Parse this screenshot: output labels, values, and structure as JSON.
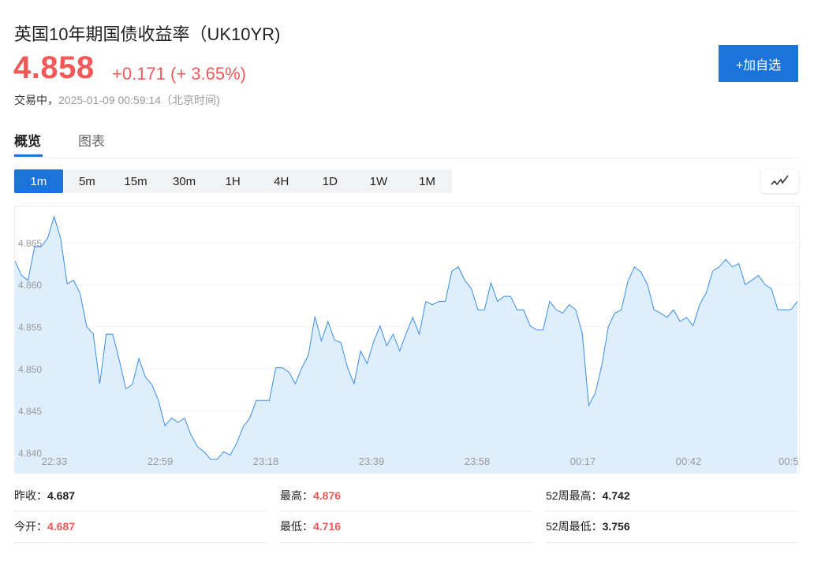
{
  "header": {
    "title": "英国10年期国债收益率（UK10YR)",
    "price": "4.858",
    "change": "+0.171 (+ 3.65%)",
    "status_label": "交易中，",
    "timestamp": "2025-01-09 00:59:14（北京时间)",
    "add_button": "+加自选"
  },
  "tabs": [
    {
      "label": "概览",
      "active": true
    },
    {
      "label": "图表",
      "active": false
    }
  ],
  "timeframes": [
    {
      "label": "1m",
      "active": true
    },
    {
      "label": "5m"
    },
    {
      "label": "15m"
    },
    {
      "label": "30m"
    },
    {
      "label": "1H"
    },
    {
      "label": "4H"
    },
    {
      "label": "1D"
    },
    {
      "label": "1W"
    },
    {
      "label": "1M"
    }
  ],
  "chart_type_icon": "line-chart-icon",
  "colors": {
    "up": "#f25858",
    "accent": "#1a74d9",
    "line": "#3a8ee6",
    "fill": "#deeefd"
  },
  "chart_data": {
    "type": "area",
    "y_ticks": [
      "4.840",
      "4.845",
      "4.850",
      "4.855",
      "4.860",
      "4.865"
    ],
    "ylim": [
      4.8376,
      4.8693
    ],
    "x_ticks": [
      "22:33",
      "22:59",
      "23:18",
      "23:39",
      "23:58",
      "00:17",
      "00:42",
      "00:5"
    ],
    "grid": true,
    "values": [
      4.8628,
      4.8611,
      4.8605,
      4.8645,
      4.8645,
      4.8655,
      4.8681,
      4.8655,
      4.8601,
      4.8605,
      4.8589,
      4.855,
      4.8541,
      4.8482,
      4.8541,
      4.8541,
      4.851,
      4.8476,
      4.8481,
      4.8512,
      4.849,
      4.8481,
      4.8462,
      4.8432,
      4.8441,
      4.8436,
      4.8441,
      4.8421,
      4.8407,
      4.8401,
      4.8392,
      4.8392,
      4.8401,
      4.8397,
      4.8411,
      4.8431,
      4.8441,
      4.8462,
      4.8462,
      4.8462,
      4.8501,
      4.8501,
      4.8496,
      4.8482,
      4.8501,
      4.8516,
      4.8562,
      4.8533,
      4.8556,
      4.8534,
      4.8531,
      4.8501,
      4.8482,
      4.8521,
      4.8506,
      4.8532,
      4.8551,
      4.8527,
      4.8541,
      4.8521,
      4.8542,
      4.8561,
      4.8541,
      4.858,
      4.8576,
      4.858,
      4.858,
      4.8616,
      4.8621,
      4.8605,
      4.8595,
      4.857,
      4.857,
      4.8602,
      4.858,
      4.8586,
      4.8586,
      4.857,
      4.857,
      4.8551,
      4.8546,
      4.8546,
      4.858,
      4.857,
      4.8566,
      4.8576,
      4.857,
      4.8542,
      4.8456,
      4.8471,
      4.8504,
      4.855,
      4.8566,
      4.857,
      4.8604,
      4.8621,
      4.8615,
      4.86,
      4.857,
      4.8566,
      4.8561,
      4.857,
      4.8556,
      4.8561,
      4.8551,
      4.8576,
      4.859,
      4.8616,
      4.8621,
      4.863,
      4.8621,
      4.8625,
      4.86,
      4.8605,
      4.8611,
      4.86,
      4.8595,
      4.857,
      4.857,
      4.857,
      4.858
    ]
  },
  "stats": [
    {
      "label": "昨收：",
      "value": "4.687",
      "color": "#222"
    },
    {
      "label": "最高：",
      "value": "4.876",
      "color": "#f25858"
    },
    {
      "label": "52周最高：",
      "value": "4.742",
      "color": "#222"
    },
    {
      "label": "今开：",
      "value": "4.687",
      "color": "#f25858"
    },
    {
      "label": "最低：",
      "value": "4.716",
      "color": "#f25858"
    },
    {
      "label": "52周最低：",
      "value": "3.756",
      "color": "#222"
    }
  ]
}
